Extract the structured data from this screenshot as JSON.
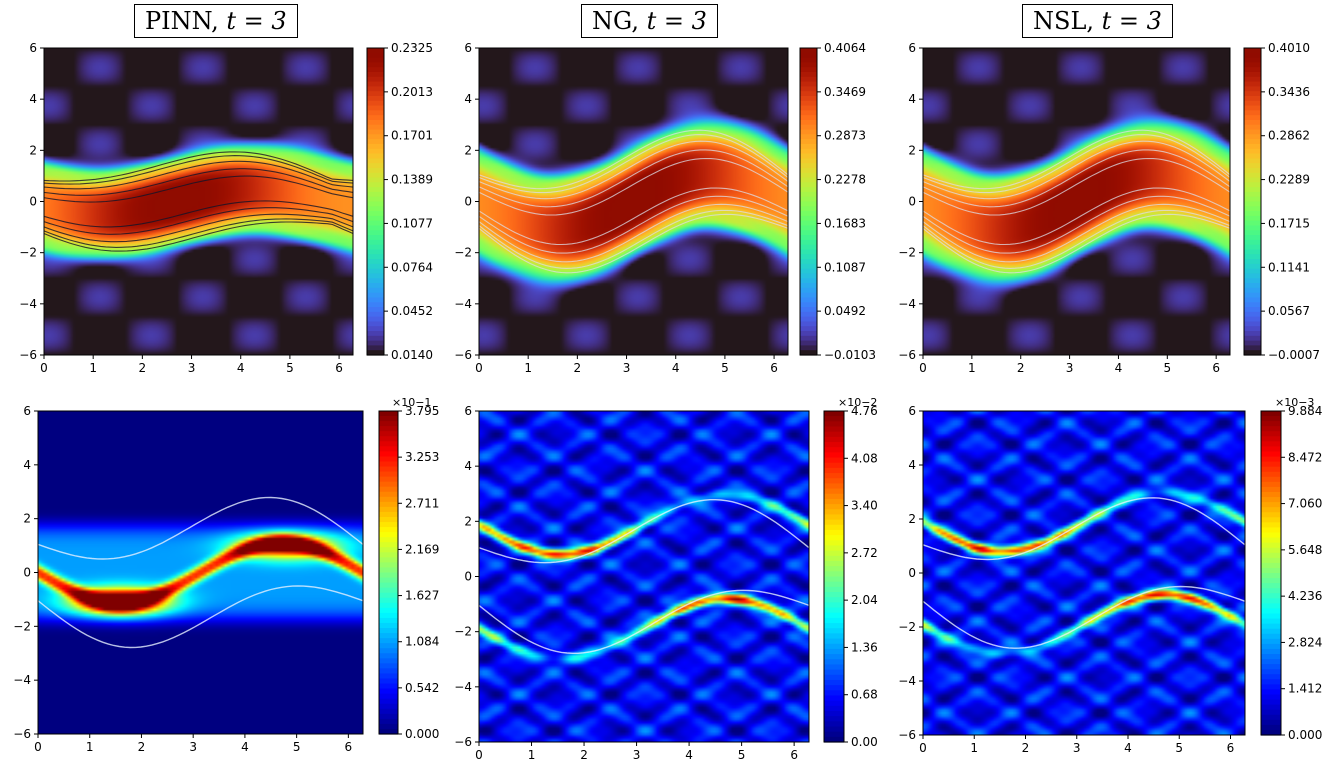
{
  "figure": {
    "panel_titles": [
      {
        "method": "PINN",
        "t_label": "t = 3"
      },
      {
        "method": "NG",
        "t_label": "t = 3"
      },
      {
        "method": "NSL",
        "t_label": "t = 3"
      }
    ]
  },
  "chart_data": [
    {
      "type": "heatmap",
      "name": "PINN solution",
      "row": "top",
      "title": "PINN, t = 3",
      "xlim": [
        0,
        6.283
      ],
      "ylim": [
        -6,
        6
      ],
      "xticks": [
        0,
        1,
        2,
        3,
        4,
        5,
        6
      ],
      "yticks": [
        -6,
        -4,
        -2,
        0,
        2,
        4,
        6
      ],
      "colormap": "turbo",
      "colorbar_ticks": [
        "0.2325",
        "0.2013",
        "0.1701",
        "0.1389",
        "0.1077",
        "0.0764",
        "0.0452",
        "0.0140"
      ],
      "colorbar_multiplier": "",
      "field": {
        "kind": "solution",
        "vmin": 0.014,
        "vmax": 0.2325,
        "peak": 0.2325,
        "tilt": 0.5,
        "amp": 1.6,
        "half_width": 1.6,
        "band": 0.18,
        "center_x": 2.7
      }
    },
    {
      "type": "heatmap",
      "name": "NG solution",
      "row": "top",
      "title": "NG, t = 3",
      "xlim": [
        0,
        6.283
      ],
      "ylim": [
        -6,
        6
      ],
      "xticks": [
        0,
        1,
        2,
        3,
        4,
        5,
        6
      ],
      "yticks": [
        -6,
        -4,
        -2,
        0,
        2,
        4,
        6
      ],
      "colormap": "turbo",
      "colorbar_ticks": [
        "0.4064",
        "0.3469",
        "0.2873",
        "0.2278",
        "0.1683",
        "0.1087",
        "0.0492",
        "−0.0103"
      ],
      "colorbar_multiplier": "",
      "field": {
        "kind": "solution",
        "vmin": -0.0103,
        "vmax": 0.4064,
        "peak": 0.4064,
        "tilt": 1.1,
        "amp": 1.9,
        "half_width": 1.9,
        "band": 0.22,
        "center_x": 3.14
      }
    },
    {
      "type": "heatmap",
      "name": "NSL solution",
      "row": "top",
      "title": "NSL, t = 3",
      "xlim": [
        0,
        6.283
      ],
      "ylim": [
        -6,
        6
      ],
      "xticks": [
        0,
        1,
        2,
        3,
        4,
        5,
        6
      ],
      "yticks": [
        -6,
        -4,
        -2,
        0,
        2,
        4,
        6
      ],
      "colormap": "turbo",
      "colorbar_ticks": [
        "0.4010",
        "0.3436",
        "0.2862",
        "0.2289",
        "0.1715",
        "0.1141",
        "0.0567",
        "−0.0007"
      ],
      "colorbar_multiplier": "",
      "field": {
        "kind": "solution",
        "vmin": -0.0007,
        "vmax": 0.401,
        "peak": 0.401,
        "tilt": 1.1,
        "amp": 1.9,
        "half_width": 1.9,
        "band": 0.22,
        "center_x": 3.14
      }
    },
    {
      "type": "heatmap",
      "name": "PINN error",
      "row": "bottom",
      "title": "",
      "xlim": [
        0,
        6.283
      ],
      "ylim": [
        -6,
        6
      ],
      "xticks": [
        0,
        1,
        2,
        3,
        4,
        5,
        6
      ],
      "yticks": [
        -6,
        -4,
        -2,
        0,
        2,
        4,
        6
      ],
      "colormap": "jet",
      "colorbar_ticks": [
        "3.795",
        "3.253",
        "2.711",
        "2.169",
        "1.627",
        "1.084",
        "0.542",
        "0.000"
      ],
      "colorbar_multiplier": "×10−1",
      "field": {
        "kind": "error_large",
        "vmin": 0.0,
        "vmax": 3.795,
        "peak": 3.795
      }
    },
    {
      "type": "heatmap",
      "name": "NG error",
      "row": "bottom",
      "title": "",
      "xlim": [
        0,
        6.283
      ],
      "ylim": [
        -6,
        6
      ],
      "xticks": [
        0,
        1,
        2,
        3,
        4,
        5,
        6
      ],
      "yticks": [
        -6,
        -4,
        -2,
        0,
        2,
        4,
        6
      ],
      "colormap": "jet",
      "colorbar_ticks": [
        "4.76",
        "4.08",
        "3.40",
        "2.72",
        "2.04",
        "1.36",
        "0.68",
        "0.00"
      ],
      "colorbar_multiplier": "×10−2",
      "field": {
        "kind": "error_small",
        "vmin": 0.0,
        "vmax": 4.76,
        "peak": 4.76
      }
    },
    {
      "type": "heatmap",
      "name": "NSL error",
      "row": "bottom",
      "title": "",
      "xlim": [
        0,
        6.283
      ],
      "ylim": [
        -6,
        6
      ],
      "xticks": [
        0,
        1,
        2,
        3,
        4,
        5,
        6
      ],
      "yticks": [
        -6,
        -4,
        -2,
        0,
        2,
        4,
        6
      ],
      "colormap": "jet",
      "colorbar_ticks": [
        "9.884",
        "8.472",
        "7.060",
        "5.648",
        "4.236",
        "2.824",
        "1.412",
        "0.000"
      ],
      "colorbar_multiplier": "×10−3",
      "field": {
        "kind": "error_small",
        "vmin": 0.0,
        "vmax": 9.884,
        "peak": 9.884
      }
    }
  ]
}
